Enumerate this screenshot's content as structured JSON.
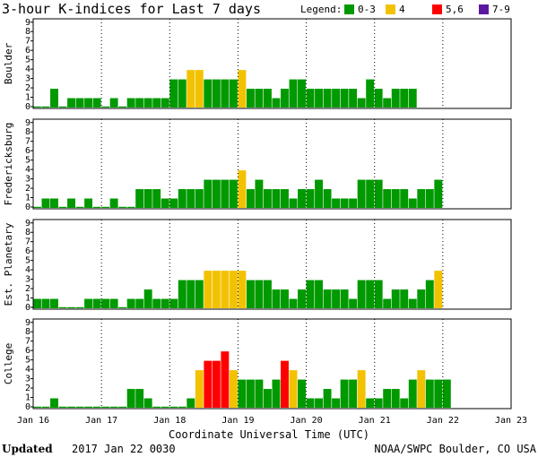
{
  "chart_data": {
    "type": "bar",
    "title": "3-hour K-indices for Last 7 days",
    "legend_label": "Legend:",
    "legend": [
      {
        "label": "0-3",
        "color": "#009900"
      },
      {
        "label": "4",
        "color": "#f2c200"
      },
      {
        "label": "5,6",
        "color": "#ff0000"
      },
      {
        "label": "7-9",
        "color": "#5a1aa0"
      }
    ],
    "ylim": [
      0,
      9
    ],
    "yticks": [
      "0",
      "1",
      "2",
      "3",
      "4",
      "5",
      "6",
      "7",
      "8",
      "9"
    ],
    "x_ticks": [
      "Jan 16",
      "Jan 17",
      "Jan 18",
      "Jan 19",
      "Jan 20",
      "Jan 21",
      "Jan 22",
      "Jan 23"
    ],
    "xlabel": "Coordinate Universal Time (UTC)",
    "series": [
      {
        "name": "Boulder",
        "values": [
          0,
          0,
          2,
          0,
          1,
          1,
          1,
          1,
          0,
          1,
          0,
          1,
          1,
          1,
          1,
          1,
          3,
          3,
          4,
          4,
          3,
          3,
          3,
          3,
          4,
          2,
          2,
          2,
          1,
          2,
          3,
          3,
          2,
          2,
          2,
          2,
          2,
          2,
          1,
          3,
          2,
          1,
          2,
          2,
          2
        ]
      },
      {
        "name": "Fredericksburg",
        "values": [
          0,
          1,
          1,
          0,
          1,
          0,
          1,
          0,
          0,
          1,
          0,
          0,
          2,
          2,
          2,
          1,
          1,
          2,
          2,
          2,
          3,
          3,
          3,
          3,
          4,
          2,
          3,
          2,
          2,
          2,
          1,
          2,
          2,
          3,
          2,
          1,
          1,
          1,
          3,
          3,
          3,
          2,
          2,
          2,
          1,
          2,
          2,
          3
        ]
      },
      {
        "name": "Est. Planetary",
        "values": [
          1,
          1,
          1,
          0,
          0,
          0,
          1,
          1,
          1,
          1,
          0,
          1,
          1,
          2,
          1,
          1,
          1,
          3,
          3,
          3,
          4,
          4,
          4,
          4,
          4,
          3,
          3,
          3,
          2,
          2,
          1,
          2,
          3,
          3,
          2,
          2,
          2,
          1,
          3,
          3,
          3,
          1,
          2,
          2,
          1,
          2,
          3,
          4
        ]
      },
      {
        "name": "College",
        "values": [
          0,
          0,
          1,
          0,
          0,
          0,
          0,
          0,
          0,
          0,
          0,
          2,
          2,
          1,
          0,
          0,
          0,
          0,
          1,
          4,
          5,
          5,
          6,
          4,
          3,
          3,
          3,
          2,
          3,
          5,
          4,
          3,
          1,
          1,
          2,
          1,
          3,
          3,
          4,
          1,
          1,
          2,
          2,
          1,
          3,
          4,
          3,
          3,
          3
        ]
      }
    ]
  },
  "footer": {
    "updated_label": "Updated",
    "updated_value": "2017 Jan 22 0030",
    "source": "NOAA/SWPC Boulder, CO USA"
  }
}
